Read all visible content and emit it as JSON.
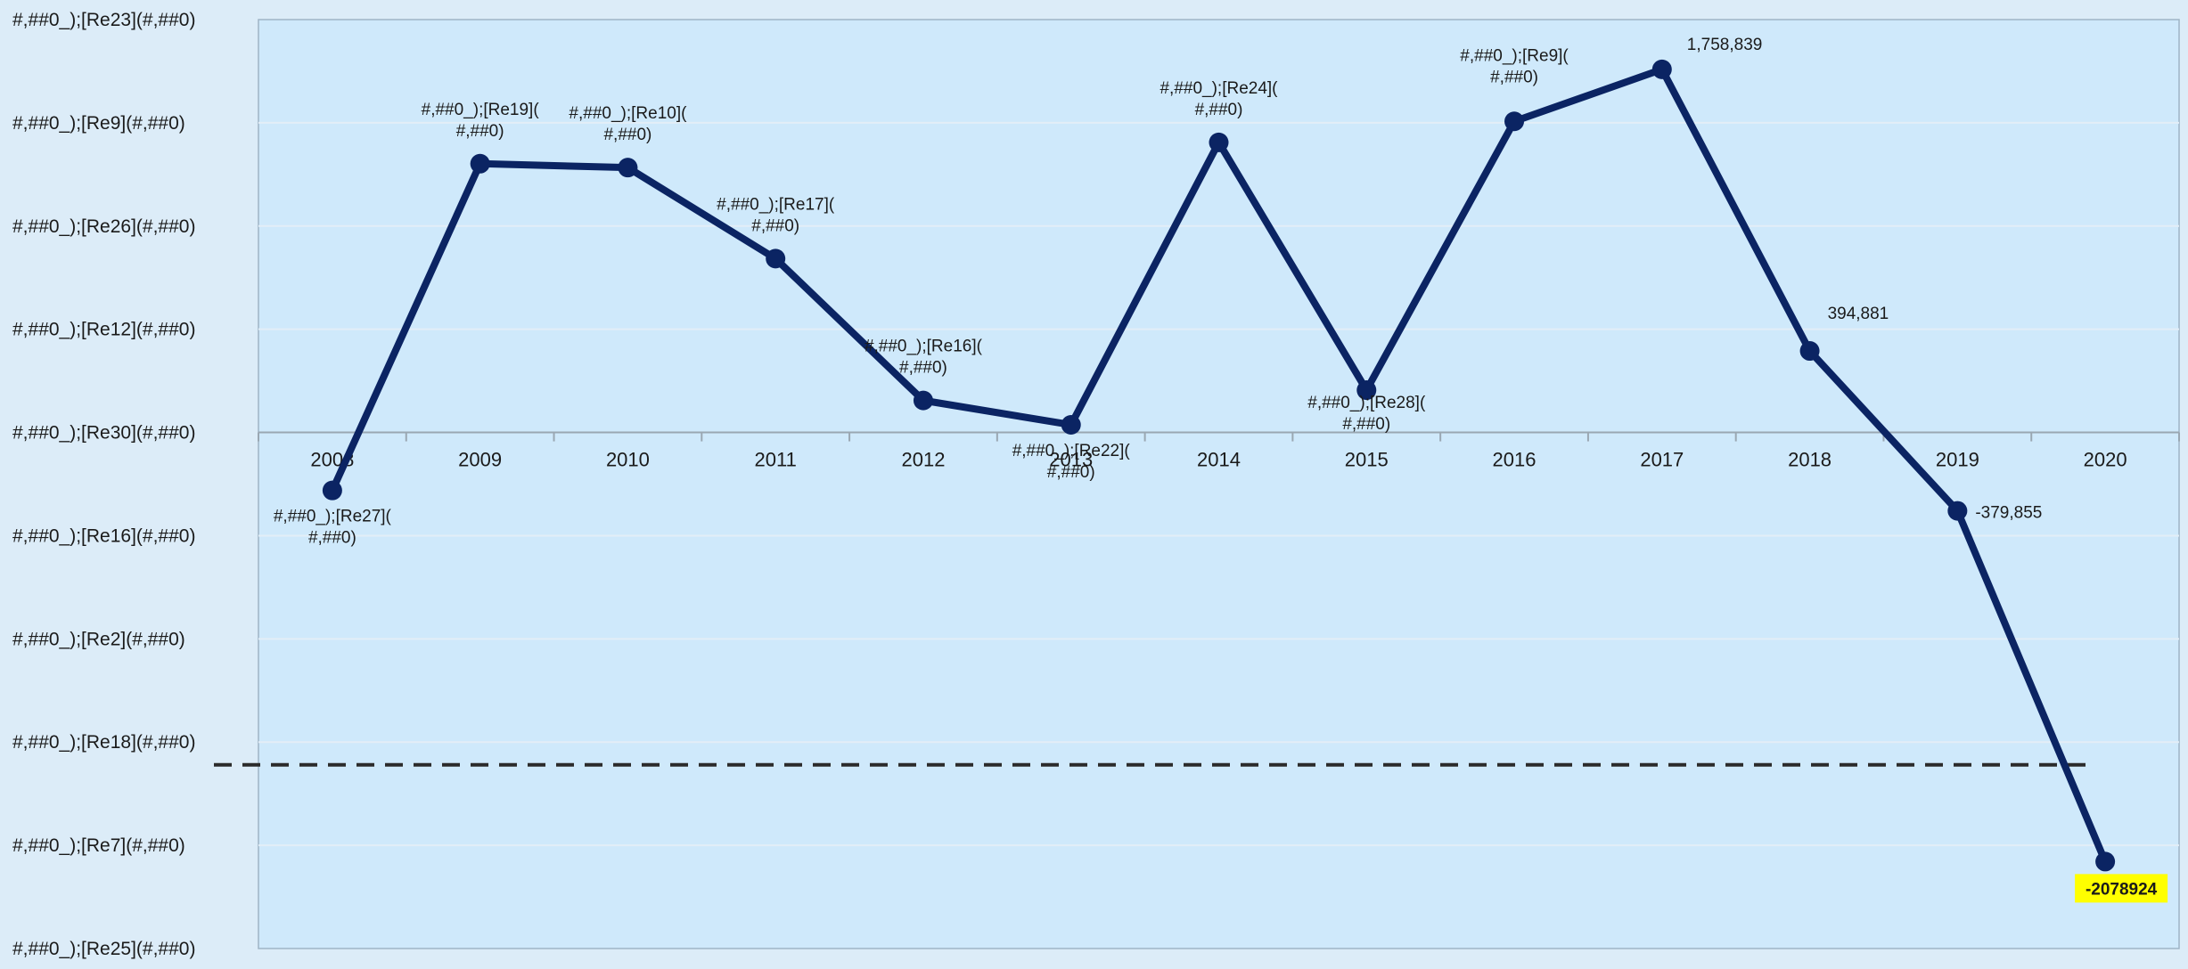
{
  "chart_data": {
    "type": "line",
    "title": "",
    "xlabel": "",
    "ylabel": "",
    "grid": true,
    "categories": [
      "2008",
      "2009",
      "2010",
      "2011",
      "2012",
      "2013",
      "2014",
      "2015",
      "2016",
      "2017",
      "2018",
      "2019",
      "2020"
    ],
    "series": [
      {
        "values": [
          -281000,
          1302000,
          1283000,
          842000,
          155000,
          37000,
          1405000,
          205000,
          1507000,
          1758839,
          394881,
          -379855,
          -2078924
        ],
        "labels": [
          "#,##0_);[Re27](#,##0)",
          "#,##0_);[Re19](#,##0)",
          "#,##0_);[Re10](#,##0)",
          "#,##0_);[Re17](#,##0)",
          "#,##0_);[Re16](#,##0)",
          "#,##0_);[Re22](#,##0)",
          "#,##0_);[Re24](#,##0)",
          "#,##0_);[Re28](#,##0)",
          "#,##0_);[Re9](#,##0)",
          "1,758,839",
          "394,881",
          "-379,855",
          "-2078924"
        ]
      }
    ],
    "yticks": [
      "#,##0_);[Re23](#,##0)",
      "#,##0_);[Re9](#,##0)",
      "#,##0_);[Re26](#,##0)",
      "#,##0_);[Re12](#,##0)",
      "#,##0_);[Re30](#,##0)",
      "#,##0_);[Re16](#,##0)",
      "#,##0_);[Re2](#,##0)",
      "#,##0_);[Re18](#,##0)",
      "#,##0_);[Re7](#,##0)",
      "#,##0_);[Re25](#,##0)"
    ],
    "ylim": [
      -2500000,
      2000000
    ],
    "ytick_step": 500000,
    "reference_line": {
      "value": -1610000,
      "style": "dashed"
    },
    "colors": {
      "line": "#0b2463",
      "plot_bg": "#cfe9fb",
      "page_bg": "#dcecf8",
      "highlight_bg": "#ffff00",
      "gridline": "#e3eef7",
      "zero_axis": "#9aa7b2"
    }
  }
}
